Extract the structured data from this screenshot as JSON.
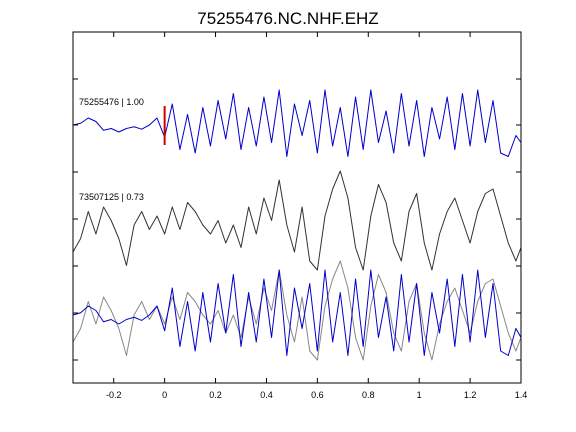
{
  "chart_data": {
    "type": "line",
    "title": "75255476.NC.NHF.EHZ",
    "xlabel": "",
    "ylabel": "",
    "xlim": [
      -0.36,
      1.4
    ],
    "x_ticks": [
      -0.2,
      0,
      0.2,
      0.4,
      0.6,
      0.8,
      1,
      1.2,
      1.4
    ],
    "x_tick_labels": [
      "-0.2",
      "0",
      "0.2",
      "0.4",
      "0.6",
      "0.8",
      "1",
      "1.2",
      "1.4"
    ],
    "grid": false,
    "legend": "none",
    "pick_marker": {
      "x": 0,
      "color": "#cc0000"
    },
    "series": [
      {
        "label": "75255476 | 1.00",
        "color": "#0000cc",
        "x": [
          -0.36,
          -0.33,
          -0.3,
          -0.27,
          -0.24,
          -0.21,
          -0.18,
          -0.15,
          -0.12,
          -0.09,
          -0.06,
          -0.03,
          0.0,
          0.03,
          0.06,
          0.09,
          0.12,
          0.15,
          0.18,
          0.21,
          0.24,
          0.27,
          0.3,
          0.33,
          0.36,
          0.39,
          0.42,
          0.45,
          0.48,
          0.51,
          0.54,
          0.57,
          0.6,
          0.63,
          0.66,
          0.69,
          0.72,
          0.75,
          0.78,
          0.81,
          0.84,
          0.87,
          0.9,
          0.93,
          0.96,
          0.99,
          1.02,
          1.05,
          1.08,
          1.11,
          1.14,
          1.17,
          1.2,
          1.23,
          1.26,
          1.29,
          1.32,
          1.35,
          1.38,
          1.4
        ],
        "y": [
          0.0,
          0.05,
          0.2,
          0.1,
          -0.15,
          -0.1,
          -0.2,
          -0.1,
          -0.05,
          -0.12,
          0.0,
          0.2,
          -0.35,
          0.6,
          -0.7,
          0.3,
          -0.8,
          0.5,
          -0.6,
          0.7,
          -0.4,
          0.9,
          -0.7,
          0.5,
          -0.6,
          0.8,
          -0.5,
          1.0,
          -0.9,
          0.6,
          -0.3,
          0.7,
          -0.8,
          1.0,
          -0.6,
          0.5,
          -0.9,
          0.8,
          -0.7,
          1.0,
          -0.5,
          0.4,
          -0.8,
          0.9,
          -0.6,
          0.7,
          -0.9,
          0.5,
          -0.4,
          0.8,
          -0.7,
          0.9,
          -0.6,
          1.0,
          -0.5,
          0.7,
          -0.8,
          -0.9,
          -0.3,
          -0.5
        ]
      },
      {
        "label": "73507125 | 0.73",
        "color": "#333333",
        "x": [
          -0.36,
          -0.33,
          -0.3,
          -0.27,
          -0.24,
          -0.21,
          -0.18,
          -0.15,
          -0.12,
          -0.09,
          -0.06,
          -0.03,
          0.0,
          0.03,
          0.06,
          0.09,
          0.12,
          0.15,
          0.18,
          0.21,
          0.24,
          0.27,
          0.3,
          0.33,
          0.36,
          0.39,
          0.42,
          0.45,
          0.48,
          0.51,
          0.54,
          0.57,
          0.6,
          0.63,
          0.66,
          0.69,
          0.72,
          0.75,
          0.78,
          0.81,
          0.84,
          0.87,
          0.9,
          0.93,
          0.96,
          0.99,
          1.02,
          1.05,
          1.08,
          1.11,
          1.14,
          1.17,
          1.2,
          1.23,
          1.26,
          1.29,
          1.32,
          1.35,
          1.38,
          1.4
        ],
        "y": [
          -0.6,
          -0.3,
          0.3,
          -0.2,
          0.4,
          0.1,
          -0.3,
          -0.9,
          0.0,
          0.3,
          -0.1,
          0.2,
          -0.2,
          0.4,
          -0.1,
          0.5,
          0.3,
          0.0,
          -0.2,
          0.1,
          -0.4,
          0.0,
          -0.5,
          0.4,
          -0.2,
          0.6,
          0.1,
          1.0,
          0.0,
          -0.6,
          0.4,
          -0.8,
          -1.0,
          0.2,
          0.8,
          1.2,
          0.6,
          -0.5,
          -1.0,
          0.2,
          0.9,
          0.5,
          -0.4,
          -0.8,
          0.3,
          0.7,
          -0.4,
          -1.0,
          -0.2,
          0.3,
          0.6,
          0.1,
          -0.4,
          0.3,
          0.7,
          0.8,
          0.2,
          -0.4,
          -0.8,
          -0.5
        ]
      },
      {
        "label": "",
        "color": "#0000cc",
        "x": [
          -0.36,
          -0.33,
          -0.3,
          -0.27,
          -0.24,
          -0.21,
          -0.18,
          -0.15,
          -0.12,
          -0.09,
          -0.06,
          -0.03,
          0.0,
          0.03,
          0.06,
          0.09,
          0.12,
          0.15,
          0.18,
          0.21,
          0.24,
          0.27,
          0.3,
          0.33,
          0.36,
          0.39,
          0.42,
          0.45,
          0.48,
          0.51,
          0.54,
          0.57,
          0.6,
          0.63,
          0.66,
          0.69,
          0.72,
          0.75,
          0.78,
          0.81,
          0.84,
          0.87,
          0.9,
          0.93,
          0.96,
          0.99,
          1.02,
          1.05,
          1.08,
          1.11,
          1.14,
          1.17,
          1.2,
          1.23,
          1.26,
          1.29,
          1.32,
          1.35,
          1.38,
          1.4
        ],
        "y": [
          0.0,
          0.05,
          0.2,
          0.1,
          -0.15,
          -0.1,
          -0.2,
          -0.1,
          -0.05,
          -0.12,
          0.0,
          0.2,
          -0.35,
          0.6,
          -0.7,
          0.3,
          -0.8,
          0.5,
          -0.6,
          0.7,
          -0.4,
          0.9,
          -0.7,
          0.5,
          -0.6,
          0.8,
          -0.5,
          1.0,
          -0.9,
          0.6,
          -0.3,
          0.7,
          -0.8,
          1.0,
          -0.6,
          0.5,
          -0.9,
          0.8,
          -0.7,
          1.0,
          -0.5,
          0.4,
          -0.8,
          0.9,
          -0.6,
          0.7,
          -0.9,
          0.5,
          -0.4,
          0.8,
          -0.7,
          0.9,
          -0.6,
          1.0,
          -0.5,
          0.7,
          -0.8,
          -0.9,
          -0.3,
          -0.5
        ]
      },
      {
        "label": "",
        "color": "#888888",
        "x": [
          -0.36,
          -0.33,
          -0.3,
          -0.27,
          -0.24,
          -0.21,
          -0.18,
          -0.15,
          -0.12,
          -0.09,
          -0.06,
          -0.03,
          0.0,
          0.03,
          0.06,
          0.09,
          0.12,
          0.15,
          0.18,
          0.21,
          0.24,
          0.27,
          0.3,
          0.33,
          0.36,
          0.39,
          0.42,
          0.45,
          0.48,
          0.51,
          0.54,
          0.57,
          0.6,
          0.63,
          0.66,
          0.69,
          0.72,
          0.75,
          0.78,
          0.81,
          0.84,
          0.87,
          0.9,
          0.93,
          0.96,
          0.99,
          1.02,
          1.05,
          1.08,
          1.11,
          1.14,
          1.17,
          1.2,
          1.23,
          1.26,
          1.29,
          1.32,
          1.35,
          1.38,
          1.4
        ],
        "y": [
          -0.6,
          -0.3,
          0.3,
          -0.2,
          0.4,
          0.1,
          -0.3,
          -0.9,
          0.0,
          0.3,
          -0.1,
          0.2,
          -0.2,
          0.4,
          -0.1,
          0.5,
          0.3,
          0.0,
          -0.2,
          0.1,
          -0.4,
          0.0,
          -0.5,
          0.4,
          -0.2,
          0.6,
          0.1,
          1.0,
          0.0,
          -0.6,
          0.4,
          -0.8,
          -1.0,
          0.2,
          0.8,
          1.2,
          0.6,
          -0.5,
          -1.0,
          0.2,
          0.9,
          0.5,
          -0.4,
          -0.8,
          0.3,
          0.7,
          -0.4,
          -1.0,
          -0.2,
          0.3,
          0.6,
          0.1,
          -0.4,
          0.3,
          0.7,
          0.8,
          0.2,
          -0.4,
          -0.8,
          -0.5
        ]
      }
    ]
  }
}
